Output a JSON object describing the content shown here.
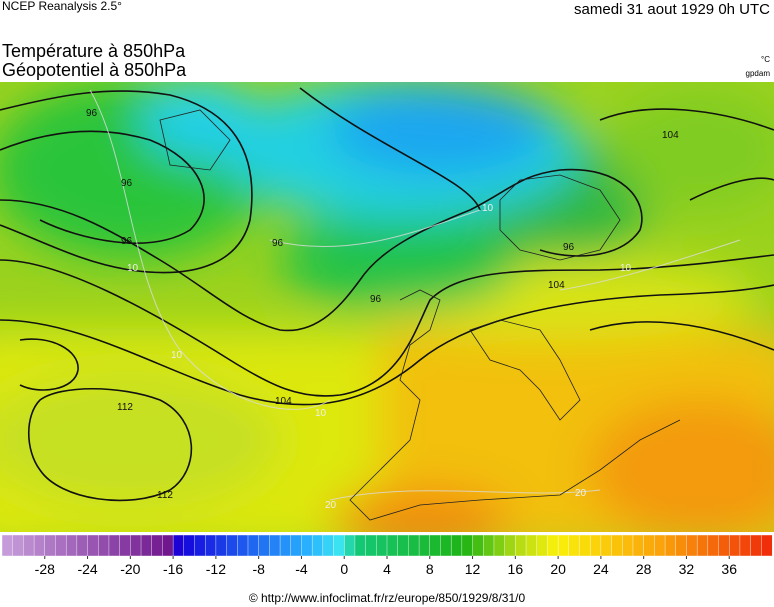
{
  "header": {
    "source": "NCEP Reanalysis 2.5°",
    "date": "samedi 31 aout 1929 0h UTC"
  },
  "titles": [
    "Température à 850hPa",
    "Géopotentiel à 850hPa"
  ],
  "units": [
    "°C",
    "gpdam"
  ],
  "contour_labels": [
    "96",
    "96",
    "96",
    "96",
    "96",
    "96",
    "104",
    "104",
    "104",
    "112",
    "112",
    "10",
    "10",
    "10",
    "10",
    "10",
    "20",
    "20"
  ],
  "colorbar": {
    "lim": [
      -32,
      40
    ],
    "ticks": [
      -28,
      -24,
      -20,
      -16,
      -12,
      -8,
      -4,
      0,
      4,
      8,
      12,
      16,
      20,
      24,
      28,
      32,
      36
    ]
  },
  "footer": "© http://www.infoclimat.fr/rz/europe/850/1929/8/31/0"
}
